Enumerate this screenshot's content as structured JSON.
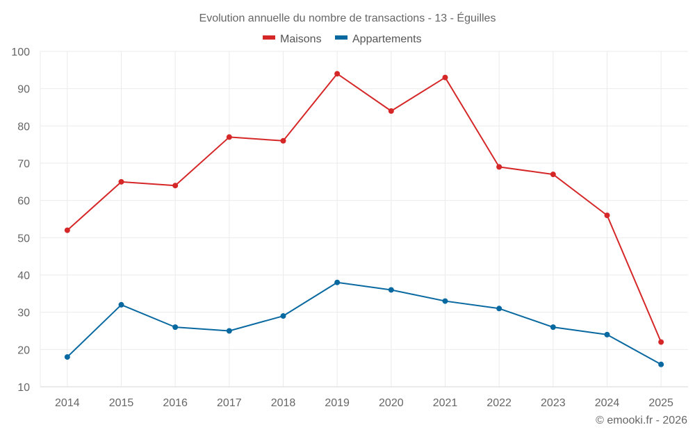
{
  "chart_data": {
    "type": "line",
    "title": "Evolution annuelle du nombre de transactions - 13 - Éguilles",
    "xlabel": "",
    "ylabel": "",
    "categories": [
      "2014",
      "2015",
      "2016",
      "2017",
      "2018",
      "2019",
      "2020",
      "2021",
      "2022",
      "2023",
      "2024",
      "2025"
    ],
    "series": [
      {
        "name": "Maisons",
        "color": "#d62728",
        "values": [
          52,
          65,
          64,
          77,
          76,
          94,
          84,
          93,
          69,
          67,
          56,
          22
        ]
      },
      {
        "name": "Appartements",
        "color": "#0868a0",
        "values": [
          18,
          32,
          26,
          25,
          29,
          38,
          36,
          33,
          31,
          26,
          24,
          16
        ]
      }
    ],
    "ylim": [
      10,
      100
    ],
    "yticks": [
      10,
      20,
      30,
      40,
      50,
      60,
      70,
      80,
      90,
      100
    ],
    "grid": true,
    "legend_position": "top-center",
    "credit": "© emooki.fr - 2026"
  }
}
